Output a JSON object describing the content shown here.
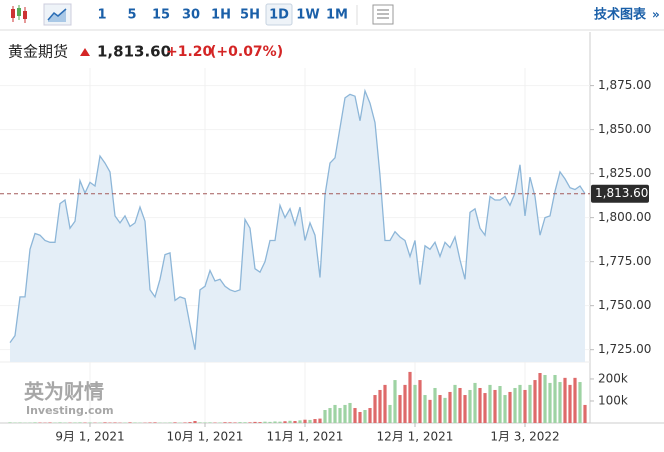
{
  "toolbar": {
    "intervals": [
      "1",
      "5",
      "15",
      "30",
      "1H",
      "5H",
      "1D",
      "1W",
      "1M"
    ],
    "selected": "1D",
    "link": "技术图表"
  },
  "header": {
    "name": "黄金期货",
    "price": "1,813.60",
    "change": "+1.20",
    "change_pct": "(+0.07%)"
  },
  "watermark": {
    "brand": "英为财情",
    "site": "Investing.com"
  },
  "chart_data": [
    {
      "type": "area",
      "color": "#8db6d8",
      "fill": "#e4eef7",
      "grid": true,
      "categories": [
        null,
        null,
        null,
        null,
        null,
        null,
        null,
        null,
        null,
        null,
        null,
        null,
        null,
        null,
        null,
        null,
        "9月 1, 2021",
        null,
        null,
        null,
        null,
        null,
        null,
        null,
        null,
        null,
        null,
        null,
        null,
        null,
        null,
        null,
        null,
        null,
        null,
        null,
        null,
        null,
        null,
        "10月 1, 2021",
        null,
        null,
        null,
        null,
        null,
        null,
        null,
        null,
        null,
        null,
        null,
        null,
        null,
        null,
        null,
        null,
        null,
        null,
        null,
        "11月 1, 2021",
        null,
        null,
        null,
        null,
        null,
        null,
        null,
        null,
        null,
        null,
        null,
        null,
        null,
        null,
        null,
        null,
        null,
        null,
        null,
        null,
        null,
        "12月 1, 2021",
        null,
        null,
        null,
        null,
        null,
        null,
        null,
        null,
        null,
        null,
        null,
        null,
        null,
        null,
        null,
        null,
        null,
        null,
        null,
        null,
        null,
        "1月 3, 2022",
        null,
        null,
        null,
        null,
        null,
        null,
        null,
        null,
        null,
        null,
        null,
        null
      ],
      "values": [
        1729,
        1733,
        1755,
        1755,
        1782,
        1791,
        1790,
        1787,
        1786,
        1786,
        1808,
        1810,
        1794,
        1798,
        1821,
        1814,
        1820,
        1818,
        1835,
        1831,
        1826,
        1801,
        1797,
        1801,
        1795,
        1797,
        1806,
        1798,
        1759,
        1755,
        1765,
        1779,
        1780,
        1753,
        1755,
        1754,
        1739,
        1725,
        1759,
        1761,
        1770,
        1764,
        1765,
        1761,
        1759,
        1758,
        1759,
        1799,
        1794,
        1771,
        1769,
        1775,
        1787,
        1787,
        1807,
        1800,
        1805,
        1796,
        1806,
        1787,
        1797,
        1790,
        1766,
        1813,
        1831,
        1834,
        1851,
        1868,
        1870,
        1869,
        1855,
        1872,
        1865,
        1854,
        1824,
        1787,
        1787,
        1792,
        1789,
        1787,
        1778,
        1787,
        1762,
        1784,
        1782,
        1786,
        1778,
        1786,
        1783,
        1789,
        1776,
        1765,
        1803,
        1805,
        1794,
        1790,
        1812,
        1810,
        1810,
        1812,
        1807,
        1814,
        1830,
        1801,
        1823,
        1812,
        1790,
        1800,
        1801,
        1815,
        1826,
        1822,
        1817,
        1816,
        1818,
        1813.6
      ],
      "ylim": [
        1718,
        1885
      ],
      "yticks": [
        {
          "value": 1725,
          "label": "1,725.00"
        },
        {
          "value": 1750,
          "label": "1,750.00"
        },
        {
          "value": 1775,
          "label": "1,775.00"
        },
        {
          "value": 1800,
          "label": "1,800.00"
        },
        {
          "value": 1825,
          "label": "1,825.00"
        },
        {
          "value": 1850,
          "label": "1,850.00"
        },
        {
          "value": 1875,
          "label": "1,875.00"
        }
      ],
      "last_price": {
        "value": 1813.6,
        "label": "1,813.60",
        "color": "#a45a5a"
      }
    },
    {
      "type": "bar",
      "up_color": "#9ed3a3",
      "down_color": "#de6a6a",
      "values": [
        3000,
        2000,
        2500,
        1500,
        2000,
        3000,
        2000,
        1500,
        2500,
        2000,
        3000,
        2000,
        1500,
        2500,
        3000,
        2000,
        2500,
        1500,
        2000,
        3000,
        2000,
        2500,
        1500,
        2000,
        3000,
        2500,
        2000,
        1500,
        2500,
        3000,
        2000,
        1500,
        2500,
        3000,
        2000,
        2500,
        4000,
        9000,
        3000,
        2500,
        3000,
        2000,
        2500,
        3500,
        3000,
        2500,
        4000,
        3500,
        3000,
        5000,
        4000,
        6000,
        5000,
        7000,
        6000,
        8000,
        10000,
        9000,
        12000,
        15000,
        14000,
        18000,
        20000,
        59000,
        68000,
        82000,
        68000,
        82000,
        91000,
        68000,
        50000,
        59000,
        68000,
        127000,
        150000,
        173000,
        82000,
        195000,
        127000,
        173000,
        232000,
        173000,
        195000,
        127000,
        105000,
        159000,
        127000,
        114000,
        141000,
        173000,
        159000,
        127000,
        150000,
        182000,
        159000,
        136000,
        173000,
        150000,
        168000,
        127000,
        141000,
        159000,
        173000,
        150000,
        173000,
        195000,
        227000,
        218000,
        182000,
        218000,
        186000,
        205000,
        173000,
        205000,
        186000,
        82000
      ],
      "ylim": [
        0,
        277000
      ],
      "yticks": [
        {
          "value": 100000,
          "label": "100k"
        },
        {
          "value": 200000,
          "label": "200k"
        }
      ]
    }
  ]
}
